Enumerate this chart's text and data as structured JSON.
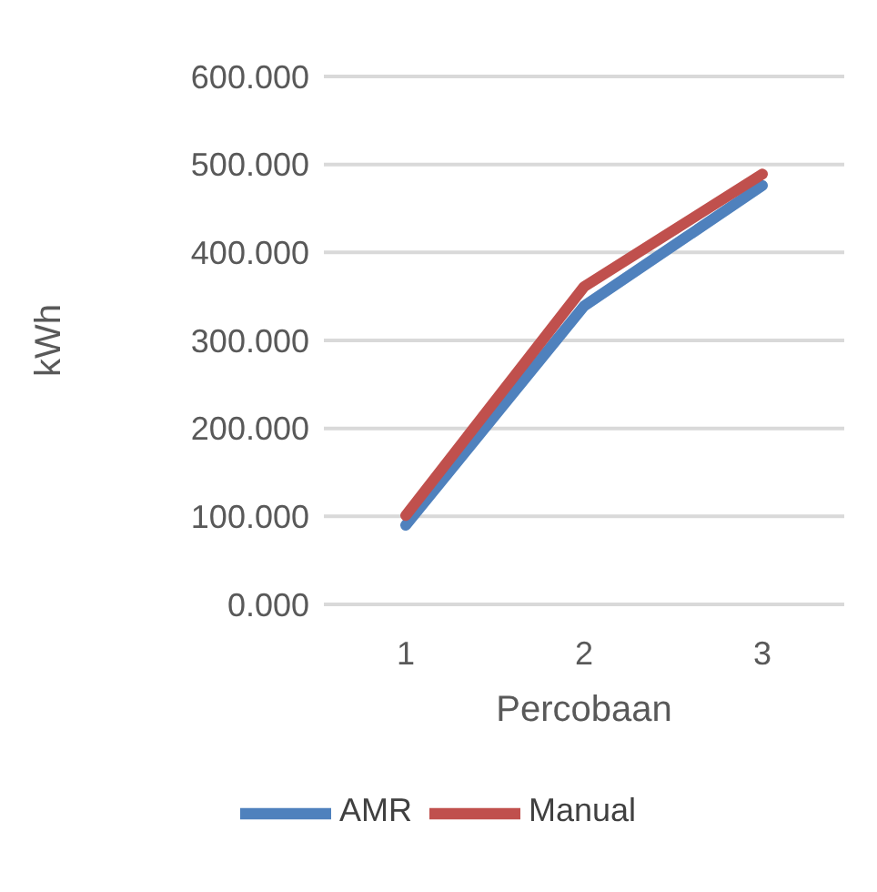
{
  "chart_data": {
    "type": "line",
    "xlabel": "Percobaan",
    "ylabel": "kWh",
    "categories": [
      "1",
      "2",
      "3"
    ],
    "series": [
      {
        "name": "AMR",
        "color": "#4f81bd",
        "values": [
          90,
          339,
          476
        ]
      },
      {
        "name": "Manual",
        "color": "#c0504d",
        "values": [
          101,
          361,
          489
        ]
      }
    ],
    "ylim": [
      0,
      600
    ],
    "yticks": [
      {
        "value": 0,
        "label": "0.000"
      },
      {
        "value": 100,
        "label": "100.000"
      },
      {
        "value": 200,
        "label": "200.000"
      },
      {
        "value": 300,
        "label": "300.000"
      },
      {
        "value": 400,
        "label": "400.000"
      },
      {
        "value": 500,
        "label": "500.000"
      },
      {
        "value": 600,
        "label": "600.000"
      }
    ],
    "grid": "y",
    "legend": "bottom",
    "marker": "none",
    "line_style": "solid"
  }
}
